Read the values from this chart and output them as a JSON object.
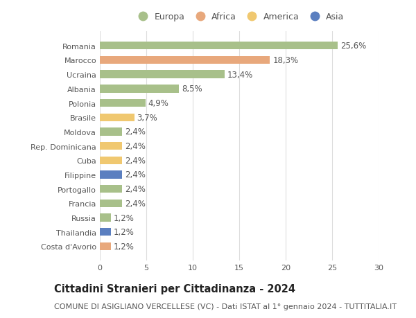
{
  "categories": [
    "Romania",
    "Marocco",
    "Ucraina",
    "Albania",
    "Polonia",
    "Brasile",
    "Moldova",
    "Rep. Dominicana",
    "Cuba",
    "Filippine",
    "Portogallo",
    "Francia",
    "Russia",
    "Thailandia",
    "Costa d'Avorio"
  ],
  "values": [
    25.6,
    18.3,
    13.4,
    8.5,
    4.9,
    3.7,
    2.4,
    2.4,
    2.4,
    2.4,
    2.4,
    2.4,
    1.2,
    1.2,
    1.2
  ],
  "labels": [
    "25,6%",
    "18,3%",
    "13,4%",
    "8,5%",
    "4,9%",
    "3,7%",
    "2,4%",
    "2,4%",
    "2,4%",
    "2,4%",
    "2,4%",
    "2,4%",
    "1,2%",
    "1,2%",
    "1,2%"
  ],
  "continents": [
    "Europa",
    "Africa",
    "Europa",
    "Europa",
    "Europa",
    "America",
    "Europa",
    "America",
    "America",
    "Asia",
    "Europa",
    "Europa",
    "Europa",
    "Asia",
    "Africa"
  ],
  "continent_colors": {
    "Europa": "#a8c08a",
    "Africa": "#e8a87c",
    "America": "#f0c870",
    "Asia": "#5b7fc0"
  },
  "legend_order": [
    "Europa",
    "Africa",
    "America",
    "Asia"
  ],
  "title": "Cittadini Stranieri per Cittadinanza - 2024",
  "subtitle": "COMUNE DI ASIGLIANO VERCELLESE (VC) - Dati ISTAT al 1° gennaio 2024 - TUTTITALIA.IT",
  "xlim": [
    0,
    30
  ],
  "xticks": [
    0,
    5,
    10,
    15,
    20,
    25,
    30
  ],
  "bg_color": "#ffffff",
  "grid_color": "#dddddd",
  "bar_height": 0.55,
  "label_fontsize": 8.5,
  "tick_fontsize": 8,
  "ytick_fontsize": 8,
  "title_fontsize": 10.5,
  "subtitle_fontsize": 8
}
